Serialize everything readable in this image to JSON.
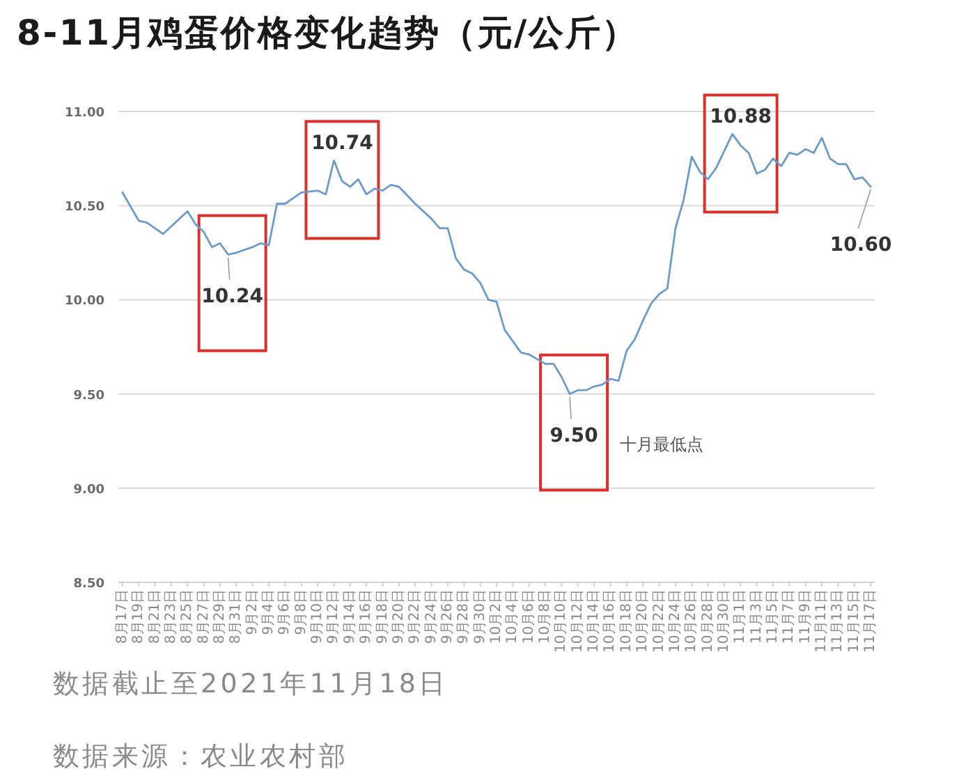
{
  "chart_data": {
    "type": "line",
    "title": "8-11月鸡蛋价格变化趋势（元/公斤）",
    "annotations": [
      "十月最低点",
      "数据截止至2021年11月18日",
      "数据来源：农业农村部"
    ],
    "x": [
      "2021-08-17",
      "2021-08-19",
      "2021-08-20",
      "2021-08-22",
      "2021-08-25",
      "2021-08-26",
      "2021-08-27",
      "2021-08-28",
      "2021-08-29",
      "2021-08-30",
      "2021-08-31",
      "2021-09-02",
      "2021-09-03",
      "2021-09-04",
      "2021-09-05",
      "2021-09-06",
      "2021-09-08",
      "2021-09-10",
      "2021-09-11",
      "2021-09-12",
      "2021-09-13",
      "2021-09-14",
      "2021-09-15",
      "2021-09-16",
      "2021-09-17",
      "2021-09-18",
      "2021-09-19",
      "2021-09-20",
      "2021-09-22",
      "2021-09-24",
      "2021-09-25",
      "2021-09-26",
      "2021-09-27",
      "2021-09-28",
      "2021-09-29",
      "2021-09-30",
      "2021-10-01",
      "2021-10-02",
      "2021-10-03",
      "2021-10-05",
      "2021-10-06",
      "2021-10-08",
      "2021-10-09",
      "2021-10-10",
      "2021-10-11",
      "2021-10-12",
      "2021-10-13",
      "2021-10-14",
      "2021-10-15",
      "2021-10-16",
      "2021-10-17",
      "2021-10-18",
      "2021-10-19",
      "2021-10-20",
      "2021-10-21",
      "2021-10-22",
      "2021-10-23",
      "2021-10-24",
      "2021-10-25",
      "2021-10-26",
      "2021-10-27",
      "2021-10-28",
      "2021-10-29",
      "2021-10-31",
      "2021-11-01",
      "2021-11-02",
      "2021-11-03",
      "2021-11-04",
      "2021-11-05",
      "2021-11-06",
      "2021-11-07",
      "2021-11-08",
      "2021-11-09",
      "2021-11-10",
      "2021-11-11",
      "2021-11-12",
      "2021-11-13",
      "2021-11-14",
      "2021-11-15",
      "2021-11-16",
      "2021-11-17"
    ],
    "series": [
      {
        "color": "#6b9bc8",
        "values": [
          10.57,
          10.42,
          10.41,
          10.35,
          10.47,
          10.4,
          10.36,
          10.28,
          10.3,
          10.24,
          10.25,
          10.28,
          10.3,
          10.29,
          10.51,
          10.51,
          10.57,
          10.58,
          10.56,
          10.74,
          10.63,
          10.6,
          10.64,
          10.56,
          10.59,
          10.58,
          10.61,
          10.6,
          10.51,
          10.43,
          10.38,
          10.38,
          10.22,
          10.16,
          10.14,
          10.09,
          10.0,
          9.99,
          9.84,
          9.72,
          9.71,
          9.66,
          9.66,
          9.59,
          9.5,
          9.52,
          9.52,
          9.54,
          9.55,
          9.58,
          9.57,
          9.73,
          9.79,
          9.89,
          9.98,
          10.03,
          10.06,
          10.38,
          10.53,
          10.76,
          10.68,
          10.64,
          10.7,
          10.88,
          10.82,
          10.78,
          10.67,
          10.69,
          10.75,
          10.71,
          10.78,
          10.77,
          10.8,
          10.78,
          10.86,
          10.75,
          10.72,
          10.72,
          10.64,
          10.65,
          10.6
        ],
        "value_labels": [
          null,
          null,
          null,
          null,
          null,
          null,
          null,
          null,
          null,
          "10.24",
          null,
          null,
          null,
          null,
          null,
          null,
          null,
          null,
          null,
          "10.74",
          null,
          null,
          null,
          null,
          null,
          null,
          null,
          null,
          null,
          null,
          null,
          null,
          null,
          null,
          null,
          null,
          null,
          null,
          null,
          null,
          null,
          null,
          null,
          null,
          "9.50",
          null,
          null,
          null,
          null,
          null,
          null,
          null,
          null,
          null,
          null,
          null,
          null,
          null,
          null,
          null,
          null,
          null,
          null,
          "10.88",
          null,
          null,
          null,
          null,
          null,
          null,
          null,
          null,
          null,
          null,
          null,
          null,
          null,
          null,
          null,
          null,
          "10.60"
        ]
      }
    ],
    "xlim": [
      "2021-08-16T12:00",
      "2021-11-17T12:00"
    ],
    "xticks": [
      {
        "value": "2021-08-17",
        "label": "8月17日"
      },
      {
        "value": "2021-08-19",
        "label": "8月19日"
      },
      {
        "value": "2021-08-21",
        "label": "8月21日"
      },
      {
        "value": "2021-08-23",
        "label": "8月23日"
      },
      {
        "value": "2021-08-25",
        "label": "8月25日"
      },
      {
        "value": "2021-08-27",
        "label": "8月27日"
      },
      {
        "value": "2021-08-29",
        "label": "8月29日"
      },
      {
        "value": "2021-08-31",
        "label": "8月31日"
      },
      {
        "value": "2021-09-02",
        "label": "9月2日"
      },
      {
        "value": "2021-09-04",
        "label": "9月4日"
      },
      {
        "value": "2021-09-06",
        "label": "9月6日"
      },
      {
        "value": "2021-09-08",
        "label": "9月8日"
      },
      {
        "value": "2021-09-10",
        "label": "9月10日"
      },
      {
        "value": "2021-09-12",
        "label": "9月12日"
      },
      {
        "value": "2021-09-14",
        "label": "9月14日"
      },
      {
        "value": "2021-09-16",
        "label": "9月16日"
      },
      {
        "value": "2021-09-18",
        "label": "9月18日"
      },
      {
        "value": "2021-09-20",
        "label": "9月20日"
      },
      {
        "value": "2021-09-22",
        "label": "9月22日"
      },
      {
        "value": "2021-09-24",
        "label": "9月24日"
      },
      {
        "value": "2021-09-26",
        "label": "9月26日"
      },
      {
        "value": "2021-09-28",
        "label": "9月28日"
      },
      {
        "value": "2021-09-30",
        "label": "9月30日"
      },
      {
        "value": "2021-10-02",
        "label": "10月2日"
      },
      {
        "value": "2021-10-04",
        "label": "10月4日"
      },
      {
        "value": "2021-10-06",
        "label": "10月6日"
      },
      {
        "value": "2021-10-08",
        "label": "10月8日"
      },
      {
        "value": "2021-10-10",
        "label": "10月10日"
      },
      {
        "value": "2021-10-12",
        "label": "10月12日"
      },
      {
        "value": "2021-10-14",
        "label": "10月14日"
      },
      {
        "value": "2021-10-16",
        "label": "10月16日"
      },
      {
        "value": "2021-10-18",
        "label": "10月18日"
      },
      {
        "value": "2021-10-20",
        "label": "10月20日"
      },
      {
        "value": "2021-10-22",
        "label": "10月22日"
      },
      {
        "value": "2021-10-24",
        "label": "10月24日"
      },
      {
        "value": "2021-10-26",
        "label": "10月26日"
      },
      {
        "value": "2021-10-28",
        "label": "10月28日"
      },
      {
        "value": "2021-10-30",
        "label": "10月30日"
      },
      {
        "value": "2021-11-01",
        "label": "11月1日"
      },
      {
        "value": "2021-11-03",
        "label": "11月3日"
      },
      {
        "value": "2021-11-05",
        "label": "11月5日"
      },
      {
        "value": "2021-11-07",
        "label": "11月7日"
      },
      {
        "value": "2021-11-09",
        "label": "11月9日"
      },
      {
        "value": "2021-11-11",
        "label": "11月11日"
      },
      {
        "value": "2021-11-13",
        "label": "11月13日"
      },
      {
        "value": "2021-11-15",
        "label": "11月15日"
      },
      {
        "value": "2021-11-17",
        "label": "11月17日"
      }
    ],
    "ylim": [
      8.5,
      11
    ],
    "yticks": [
      {
        "value": 8.5,
        "label": "8.50"
      },
      {
        "value": 9,
        "label": "9.00"
      },
      {
        "value": 9.5,
        "label": "9.50"
      },
      {
        "value": 10,
        "label": "10.00"
      },
      {
        "value": 10.5,
        "label": "10.50"
      },
      {
        "value": 11,
        "label": "11.00"
      }
    ],
    "grid": "y",
    "marker": "none"
  }
}
